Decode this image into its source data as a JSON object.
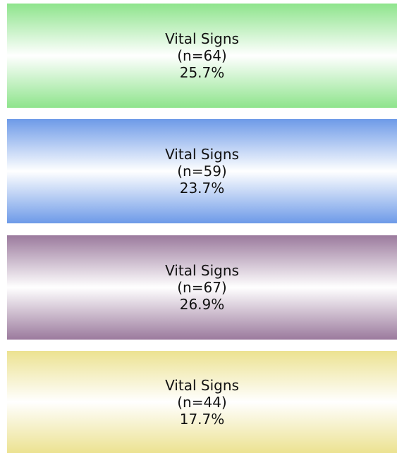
{
  "boxes": [
    {
      "label": "Vital Signs",
      "count": "(n=64)",
      "percent": "25.7%"
    },
    {
      "label": "Vital Signs",
      "count": "(n=59)",
      "percent": "23.7%"
    },
    {
      "label": "Vital Signs",
      "count": "(n=67)",
      "percent": "26.9%"
    },
    {
      "label": "Vital Signs",
      "count": "(n=44)",
      "percent": "17.7%"
    }
  ]
}
